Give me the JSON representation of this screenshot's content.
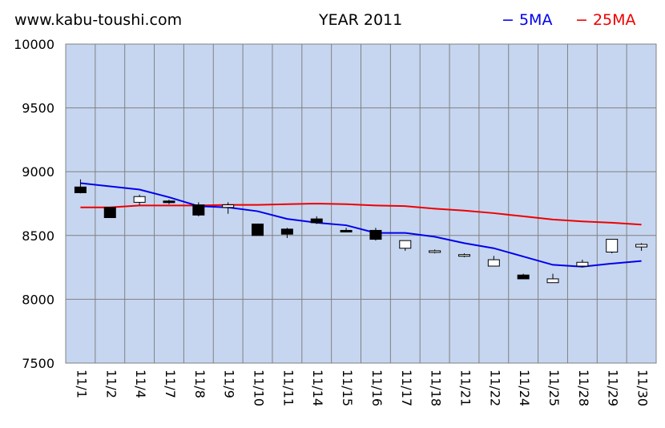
{
  "header": {
    "site": "www.kabu-toushi.com",
    "title": "YEAR 2011"
  },
  "colors": {
    "plot_background": "#c6d6f0",
    "grid": "#808080",
    "ma5": "#0000ee",
    "ma25": "#ee0000",
    "candle_up": "#ffffff",
    "candle_down": "#000000"
  },
  "chart_data": {
    "type": "candlestick",
    "ylim": [
      7500,
      10000
    ],
    "yticks": [
      7500,
      8000,
      8500,
      9000,
      9500,
      10000
    ],
    "grid": true,
    "legend_position": "top-right",
    "categories": [
      "11/1",
      "11/2",
      "11/4",
      "11/7",
      "11/8",
      "11/9",
      "11/10",
      "11/11",
      "11/14",
      "11/15",
      "11/16",
      "11/17",
      "11/18",
      "11/21",
      "11/22",
      "11/24",
      "11/25",
      "11/28",
      "11/29",
      "11/30"
    ],
    "candles": [
      {
        "open": 8880,
        "high": 8940,
        "low": 8830,
        "close": 8835
      },
      {
        "open": 8720,
        "high": 8720,
        "low": 8640,
        "close": 8640
      },
      {
        "open": 8760,
        "high": 8820,
        "low": 8740,
        "close": 8805
      },
      {
        "open": 8770,
        "high": 8780,
        "low": 8745,
        "close": 8760
      },
      {
        "open": 8740,
        "high": 8760,
        "low": 8650,
        "close": 8660
      },
      {
        "open": 8720,
        "high": 8760,
        "low": 8670,
        "close": 8740
      },
      {
        "open": 8590,
        "high": 8590,
        "low": 8500,
        "close": 8500
      },
      {
        "open": 8550,
        "high": 8560,
        "low": 8480,
        "close": 8510
      },
      {
        "open": 8630,
        "high": 8650,
        "low": 8590,
        "close": 8600
      },
      {
        "open": 8540,
        "high": 8560,
        "low": 8525,
        "close": 8530
      },
      {
        "open": 8540,
        "high": 8560,
        "low": 8460,
        "close": 8470
      },
      {
        "open": 8400,
        "high": 8460,
        "low": 8380,
        "close": 8460
      },
      {
        "open": 8370,
        "high": 8390,
        "low": 8360,
        "close": 8380
      },
      {
        "open": 8340,
        "high": 8360,
        "low": 8330,
        "close": 8350
      },
      {
        "open": 8260,
        "high": 8340,
        "low": 8260,
        "close": 8310
      },
      {
        "open": 8190,
        "high": 8200,
        "low": 8160,
        "close": 8160
      },
      {
        "open": 8130,
        "high": 8200,
        "low": 8130,
        "close": 8160
      },
      {
        "open": 8260,
        "high": 8310,
        "low": 8250,
        "close": 8290
      },
      {
        "open": 8370,
        "high": 8470,
        "low": 8360,
        "close": 8470
      },
      {
        "open": 8410,
        "high": 8440,
        "low": 8380,
        "close": 8430
      }
    ],
    "series": [
      {
        "name": "5MA",
        "values": [
          8910,
          8885,
          8860,
          8800,
          8730,
          8720,
          8690,
          8630,
          8600,
          8580,
          8520,
          8520,
          8490,
          8440,
          8400,
          8335,
          8270,
          8255,
          8280,
          8300
        ]
      },
      {
        "name": "25MA",
        "values": [
          8720,
          8720,
          8735,
          8735,
          8735,
          8740,
          8740,
          8745,
          8750,
          8745,
          8735,
          8730,
          8710,
          8695,
          8675,
          8650,
          8625,
          8610,
          8600,
          8585
        ]
      }
    ]
  }
}
